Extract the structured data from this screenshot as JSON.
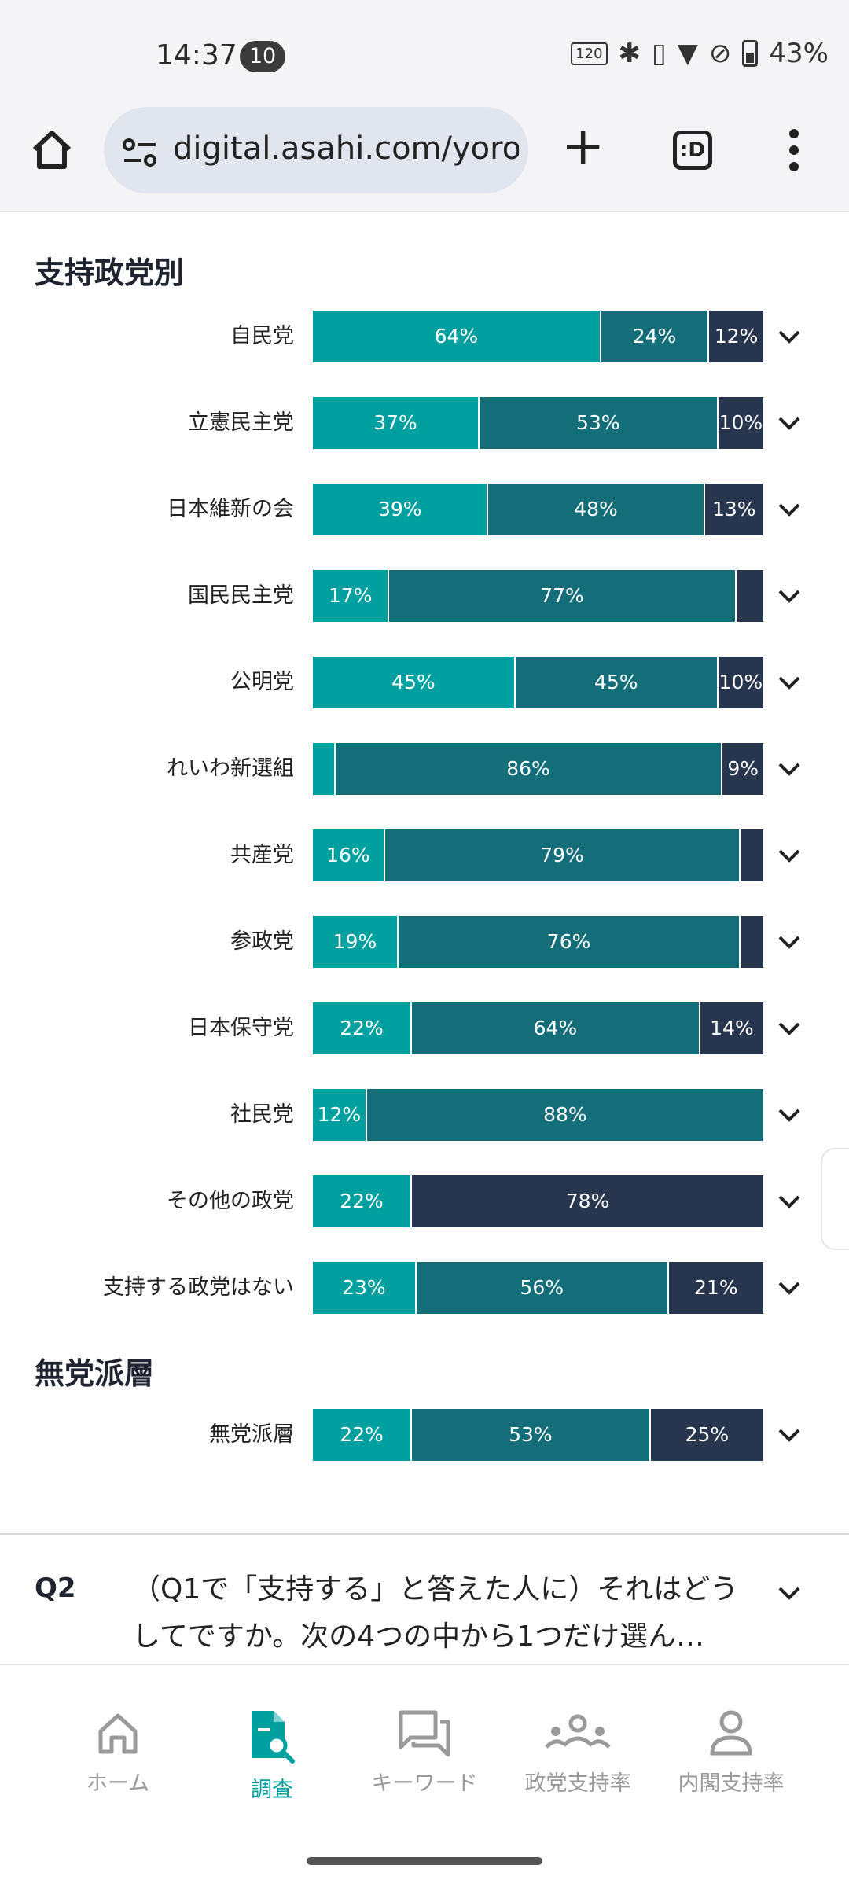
{
  "status_bar": {
    "time": "14:37",
    "notification_count": "10",
    "hz_label": "120",
    "battery": "43%"
  },
  "browser": {
    "url": "digital.asahi.com/yoron",
    "tab_icon_text": ":D"
  },
  "sections": [
    {
      "title": "支持政党別",
      "rows": [
        {
          "label": "自民党",
          "segments": [
            64,
            24,
            12
          ],
          "texts": [
            "64%",
            "24%",
            "12%"
          ]
        },
        {
          "label": "立憲民主党",
          "segments": [
            37,
            53,
            10
          ],
          "texts": [
            "37%",
            "53%",
            "10%"
          ]
        },
        {
          "label": "日本維新の会",
          "segments": [
            39,
            48,
            13
          ],
          "texts": [
            "39%",
            "48%",
            "13%"
          ]
        },
        {
          "label": "国民民主党",
          "segments": [
            17,
            77,
            6
          ],
          "texts": [
            "17%",
            "77%",
            ""
          ]
        },
        {
          "label": "公明党",
          "segments": [
            45,
            45,
            10
          ],
          "texts": [
            "45%",
            "45%",
            "10%"
          ]
        },
        {
          "label": "れいわ新選組",
          "segments": [
            5,
            86,
            9
          ],
          "texts": [
            "",
            "86%",
            "9%"
          ]
        },
        {
          "label": "共産党",
          "segments": [
            16,
            79,
            5
          ],
          "texts": [
            "16%",
            "79%",
            ""
          ]
        },
        {
          "label": "参政党",
          "segments": [
            19,
            76,
            5
          ],
          "texts": [
            "19%",
            "76%",
            ""
          ]
        },
        {
          "label": "日本保守党",
          "segments": [
            22,
            64,
            14
          ],
          "texts": [
            "22%",
            "64%",
            "14%"
          ]
        },
        {
          "label": "社民党",
          "segments": [
            12,
            88,
            0
          ],
          "texts": [
            "12%",
            "88%",
            ""
          ]
        },
        {
          "label": "その他の政党",
          "segments": [
            22,
            0,
            78
          ],
          "texts": [
            "22%",
            "",
            "78%"
          ]
        },
        {
          "label": "支持する政党はない",
          "segments": [
            23,
            56,
            21
          ],
          "texts": [
            "23%",
            "56%",
            "21%"
          ]
        }
      ]
    },
    {
      "title": "無党派層",
      "rows": [
        {
          "label": "無党派層",
          "segments": [
            22,
            53,
            25
          ],
          "texts": [
            "22%",
            "53%",
            "25%"
          ]
        }
      ]
    }
  ],
  "colors": {
    "support": "#00a0a0",
    "oppose": "#136e79",
    "other": "#27364e"
  },
  "q2": {
    "label": "Q2",
    "text": "（Q1で「支持する」と答えた人に）それはどうしてですか。次の4つの中から1つだけ選ん…"
  },
  "bottom_nav": [
    {
      "label": "ホーム",
      "icon": "home-icon",
      "active": false
    },
    {
      "label": "調査",
      "icon": "survey-search-icon",
      "active": true
    },
    {
      "label": "キーワード",
      "icon": "chat-icon",
      "active": false
    },
    {
      "label": "政党支持率",
      "icon": "group-icon",
      "active": false
    },
    {
      "label": "内閣支持率",
      "icon": "person-icon",
      "active": false
    }
  ]
}
